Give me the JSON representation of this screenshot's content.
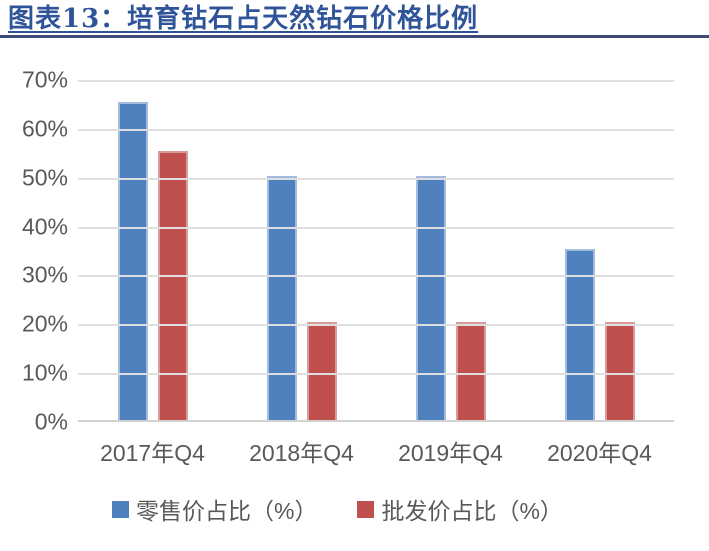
{
  "header": {
    "title": "图表13：培育钻石占天然钻石价格比例",
    "title_color": "#2F5499",
    "rule_color": "#3D4A77"
  },
  "chart_data": {
    "type": "bar",
    "title": "图表13：培育钻石占天然钻石价格比例",
    "categories": [
      "2017年Q4",
      "2018年Q4",
      "2019年Q4",
      "2020年Q4"
    ],
    "series": [
      {
        "name": "零售价占比（%）",
        "color": "#4E81BD",
        "edge_color": "#A3BCDD",
        "values": [
          65,
          50,
          50,
          35
        ]
      },
      {
        "name": "批发价占比（%）",
        "color": "#C0504D",
        "edge_color": "#D89B99",
        "values": [
          55,
          20,
          20,
          20
        ]
      }
    ],
    "xlabel": "",
    "ylabel": "",
    "ylim": [
      0,
      70
    ],
    "ytick_step": 10,
    "yticks": [
      "0%",
      "10%",
      "20%",
      "30%",
      "40%",
      "50%",
      "60%",
      "70%"
    ],
    "grid": true,
    "grid_color": "#DFDFDF",
    "axis_line_color": "#D2D2D2",
    "axis_text_color": "#595959",
    "legend_position": "bottom"
  }
}
